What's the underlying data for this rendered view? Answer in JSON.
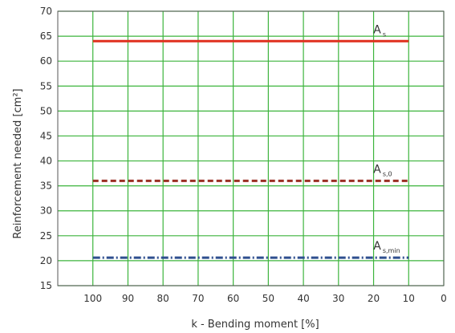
{
  "chart_data": {
    "type": "line",
    "title": "",
    "xlabel": "k - Bending moment [%]",
    "ylabel": "Reinforcement needed [cm²]",
    "xlim": [
      110,
      0
    ],
    "ylim": [
      15,
      70
    ],
    "x_reversed": true,
    "x_ticks": [
      100,
      90,
      80,
      70,
      60,
      50,
      40,
      30,
      20,
      10,
      0
    ],
    "y_ticks": [
      15,
      20,
      25,
      30,
      35,
      40,
      45,
      50,
      55,
      60,
      65,
      70
    ],
    "grid": true,
    "grid_color": "#3cb43c",
    "series": [
      {
        "label_main": "A",
        "label_sub": "s",
        "x": [
          100,
          10
        ],
        "y": [
          64,
          64
        ],
        "color": "#e0301e",
        "style": "solid"
      },
      {
        "label_main": "A",
        "label_sub": "s,0",
        "x": [
          100,
          10
        ],
        "y": [
          36,
          36
        ],
        "color": "#9b2e23",
        "style": "dashed"
      },
      {
        "label_main": "A",
        "label_sub": "s,min",
        "x": [
          100,
          10
        ],
        "y": [
          20.6,
          20.6
        ],
        "color": "#2f4f8f",
        "style": "dashdot"
      }
    ]
  }
}
